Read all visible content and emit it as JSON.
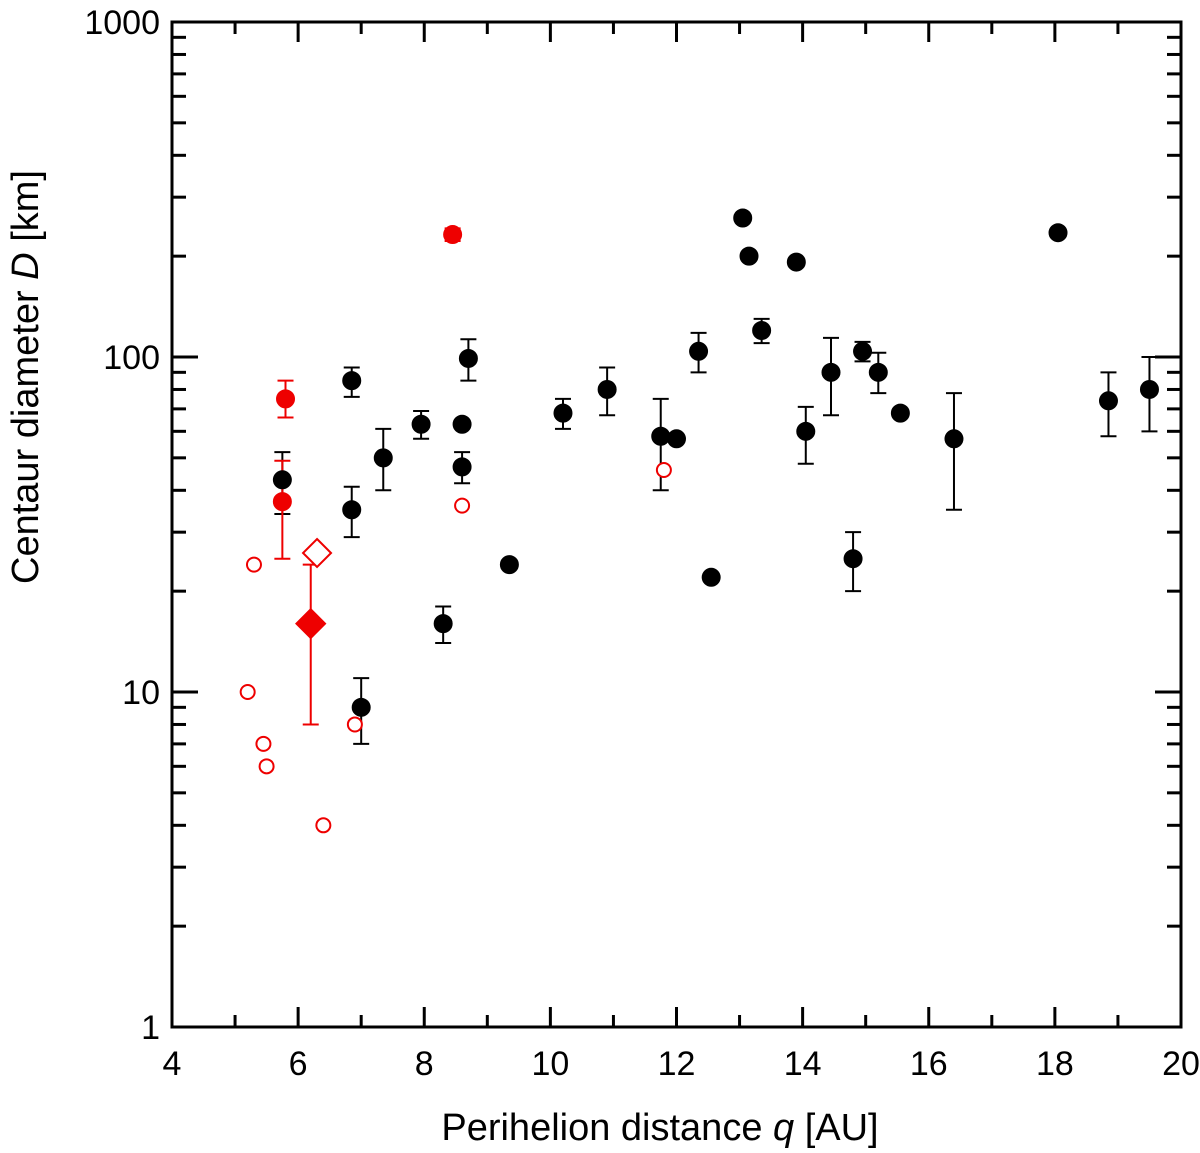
{
  "chart_data": {
    "type": "scatter",
    "title": "",
    "xlabel": {
      "prefix": "Perihelion distance ",
      "symbol": "q",
      "suffix": " [AU]"
    },
    "ylabel": {
      "prefix": "Centaur diameter ",
      "symbol": "D",
      "suffix": " [km]"
    },
    "xlim": [
      4,
      20
    ],
    "ylim": [
      1,
      1000
    ],
    "yscale": "log",
    "grid": false,
    "x_ticks": [
      4,
      6,
      8,
      10,
      12,
      14,
      16,
      18,
      20
    ],
    "x_tick_labels": [
      "4",
      "6",
      "8",
      "10",
      "12",
      "14",
      "16",
      "18",
      "20"
    ],
    "y_ticks": [
      1,
      10,
      100,
      1000
    ],
    "y_tick_labels": [
      "1",
      "10",
      "100",
      "1000"
    ],
    "colors": {
      "black": "#000000",
      "red": "#ee0000"
    },
    "series": [
      {
        "name": "black filled",
        "marker": "filled-circle",
        "color": "#000000",
        "points": [
          {
            "x": 5.75,
            "y": 43,
            "lo": 34,
            "hi": 52
          },
          {
            "x": 6.85,
            "y": 85,
            "lo": 76,
            "hi": 93
          },
          {
            "x": 6.85,
            "y": 35,
            "lo": 29,
            "hi": 41
          },
          {
            "x": 7.0,
            "y": 9,
            "lo": 7,
            "hi": 11
          },
          {
            "x": 7.35,
            "y": 50,
            "lo": 40,
            "hi": 61
          },
          {
            "x": 7.95,
            "y": 63,
            "lo": 57,
            "hi": 69
          },
          {
            "x": 8.3,
            "y": 16,
            "lo": 14,
            "hi": 18
          },
          {
            "x": 8.6,
            "y": 63
          },
          {
            "x": 8.6,
            "y": 47,
            "lo": 42,
            "hi": 52
          },
          {
            "x": 8.7,
            "y": 99,
            "lo": 85,
            "hi": 113
          },
          {
            "x": 9.35,
            "y": 24
          },
          {
            "x": 10.2,
            "y": 68,
            "lo": 61,
            "hi": 75
          },
          {
            "x": 10.9,
            "y": 80,
            "lo": 67,
            "hi": 93
          },
          {
            "x": 11.75,
            "y": 58,
            "lo": 40,
            "hi": 75
          },
          {
            "x": 12.0,
            "y": 57
          },
          {
            "x": 12.35,
            "y": 104,
            "lo": 90,
            "hi": 118
          },
          {
            "x": 12.55,
            "y": 22
          },
          {
            "x": 13.05,
            "y": 260
          },
          {
            "x": 13.15,
            "y": 200
          },
          {
            "x": 13.35,
            "y": 120,
            "lo": 110,
            "hi": 130
          },
          {
            "x": 13.9,
            "y": 192
          },
          {
            "x": 14.05,
            "y": 60,
            "lo": 48,
            "hi": 71
          },
          {
            "x": 14.45,
            "y": 90,
            "lo": 67,
            "hi": 114
          },
          {
            "x": 14.8,
            "y": 25,
            "lo": 20,
            "hi": 30
          },
          {
            "x": 14.95,
            "y": 104,
            "lo": 97,
            "hi": 111
          },
          {
            "x": 15.2,
            "y": 90,
            "lo": 78,
            "hi": 103
          },
          {
            "x": 15.55,
            "y": 68
          },
          {
            "x": 16.4,
            "y": 57,
            "lo": 35,
            "hi": 78
          },
          {
            "x": 18.05,
            "y": 235
          },
          {
            "x": 18.85,
            "y": 74,
            "lo": 58,
            "hi": 90
          },
          {
            "x": 19.5,
            "y": 80,
            "lo": 60,
            "hi": 100
          }
        ]
      },
      {
        "name": "red filled",
        "marker": "filled-circle",
        "color": "#ee0000",
        "points": [
          {
            "x": 5.8,
            "y": 75,
            "lo": 66,
            "hi": 85
          },
          {
            "x": 5.75,
            "y": 37,
            "lo": 25,
            "hi": 49
          },
          {
            "x": 8.45,
            "y": 232,
            "lo": 222,
            "hi": 242
          }
        ]
      },
      {
        "name": "red open",
        "marker": "open-circle",
        "color": "#ee0000",
        "points": [
          {
            "x": 5.2,
            "y": 10
          },
          {
            "x": 5.3,
            "y": 24
          },
          {
            "x": 5.45,
            "y": 7
          },
          {
            "x": 5.5,
            "y": 6
          },
          {
            "x": 6.4,
            "y": 4
          },
          {
            "x": 6.9,
            "y": 8
          },
          {
            "x": 8.6,
            "y": 36
          },
          {
            "x": 11.8,
            "y": 46
          }
        ]
      },
      {
        "name": "red filled diamond",
        "marker": "filled-diamond",
        "color": "#ee0000",
        "points": [
          {
            "x": 6.2,
            "y": 16,
            "lo": 8,
            "hi": 24
          }
        ]
      },
      {
        "name": "red open diamond",
        "marker": "open-diamond",
        "color": "#ee0000",
        "points": [
          {
            "x": 6.3,
            "y": 26
          }
        ]
      }
    ]
  }
}
